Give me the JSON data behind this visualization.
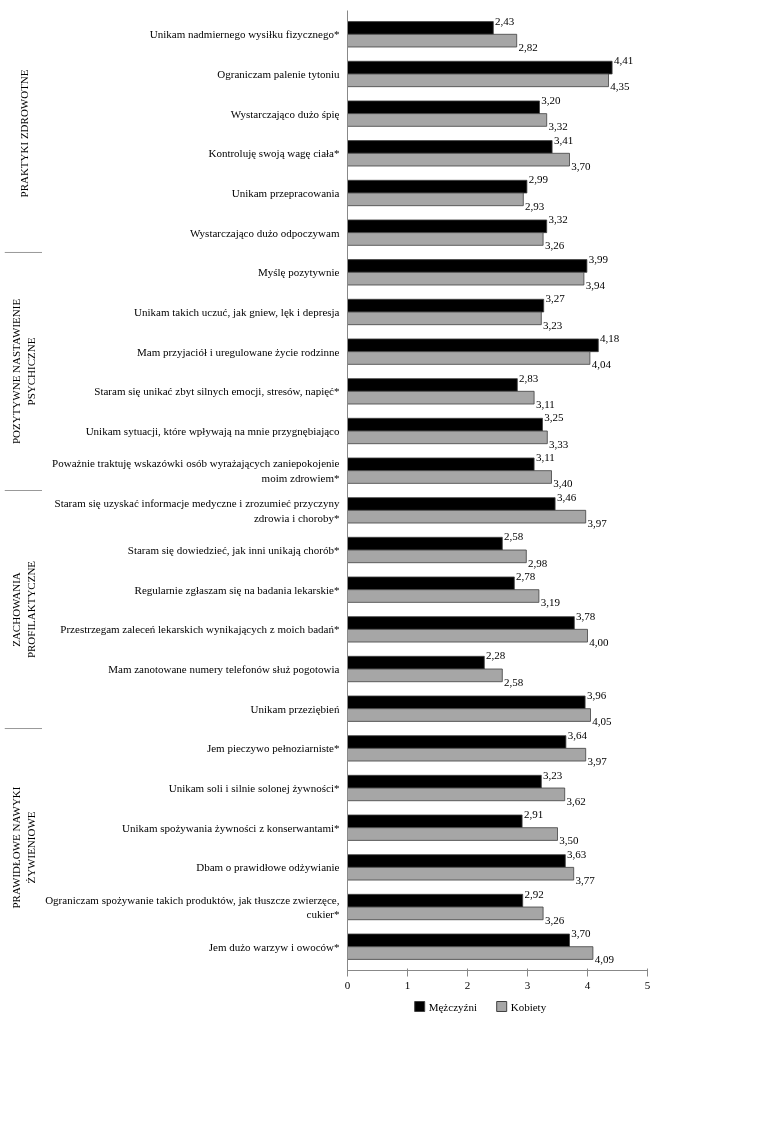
{
  "chart_data": {
    "type": "bar",
    "orientation": "horizontal",
    "categories": [
      "Unikam nadmiernego wysiłku fizycznego*",
      "Ograniczam palenie tytoniu",
      "Wystarczająco dużo śpię",
      "Kontroluję swoją wagę ciała*",
      "Unikam przepracowania",
      "Wystarczająco dużo odpoczywam",
      "Myślę pozytywnie",
      "Unikam takich uczuć, jak gniew, lęk i depresja",
      "Mam przyjaciół i uregulowane życie rodzinne",
      "Staram się unikać zbyt silnych emocji, stresów, napięć*",
      "Unikam sytuacji, które wpływają na mnie przygnębiająco",
      "Poważnie traktuję wskazówki osób wyrażających zaniepokojenie moim zdrowiem*",
      "Staram się uzyskać informacje medyczne i zrozumieć przyczyny zdrowia i choroby*",
      "Staram się dowiedzieć, jak inni unikają chorób*",
      "Regularnie zgłaszam się na badania lekarskie*",
      "Przestrzegam zaleceń lekarskich wynikających z moich badań*",
      "Mam zanotowane numery telefonów służ pogotowia",
      "Unikam przeziębień",
      "Jem pieczywo pełnoziarniste*",
      "Unikam soli i silnie solonej żywności*",
      "Unikam spożywania żywności z konserwantami*",
      "Dbam o prawidłowe odżywianie",
      "Ograniczam spożywanie takich produktów, jak tłuszcze zwierzęce, cukier*",
      "Jem dużo warzyw i owoców*"
    ],
    "series": [
      {
        "name": "Mężczyźni",
        "color": "#000000",
        "values": [
          2.43,
          4.41,
          3.2,
          3.41,
          2.99,
          3.32,
          3.99,
          3.27,
          4.18,
          2.83,
          3.25,
          3.11,
          3.46,
          2.58,
          2.78,
          3.78,
          2.28,
          3.96,
          3.64,
          3.23,
          2.91,
          3.63,
          2.92,
          3.7
        ],
        "value_labels": [
          "2,43",
          "4,41",
          "3,20",
          "3,41",
          "2,99",
          "3,32",
          "3,99",
          "3,27",
          "4,18",
          "2,83",
          "3,25",
          "3,11",
          "3,46",
          "2,58",
          "2,78",
          "3,78",
          "2,28",
          "3,96",
          "3,64",
          "3,23",
          "2,91",
          "3,63",
          "2,92",
          "3,70"
        ]
      },
      {
        "name": "Kobiety",
        "color": "#a6a6a6",
        "values": [
          2.82,
          4.35,
          3.32,
          3.7,
          2.93,
          3.26,
          3.94,
          3.23,
          4.04,
          3.11,
          3.33,
          3.4,
          3.97,
          2.98,
          3.19,
          4.0,
          2.58,
          4.05,
          3.97,
          3.62,
          3.5,
          3.77,
          3.26,
          4.09
        ],
        "value_labels": [
          "2,82",
          "4,35",
          "3,32",
          "3,70",
          "2,93",
          "3,26",
          "3,94",
          "3,23",
          "4,04",
          "3,11",
          "3,33",
          "3,40",
          "3,97",
          "2,98",
          "3,19",
          "4,00",
          "2,58",
          "4,05",
          "3,97",
          "3,62",
          "3,50",
          "3,77",
          "3,26",
          "4,09"
        ]
      }
    ],
    "annotations": [
      "PRAKTYKI ZDROWOTNE",
      "POZYTYWNE NASTAWIENIE PSYCHICZNE",
      "ZACHOWANIA PROFILAKTYCZNE",
      "PRAWIDŁOWE NAWYKI ŻYWIENIOWE"
    ],
    "xlim": [
      0,
      5
    ],
    "xticks": [
      0,
      1,
      2,
      3,
      4,
      5
    ],
    "grid": false,
    "legend": "bottom"
  }
}
